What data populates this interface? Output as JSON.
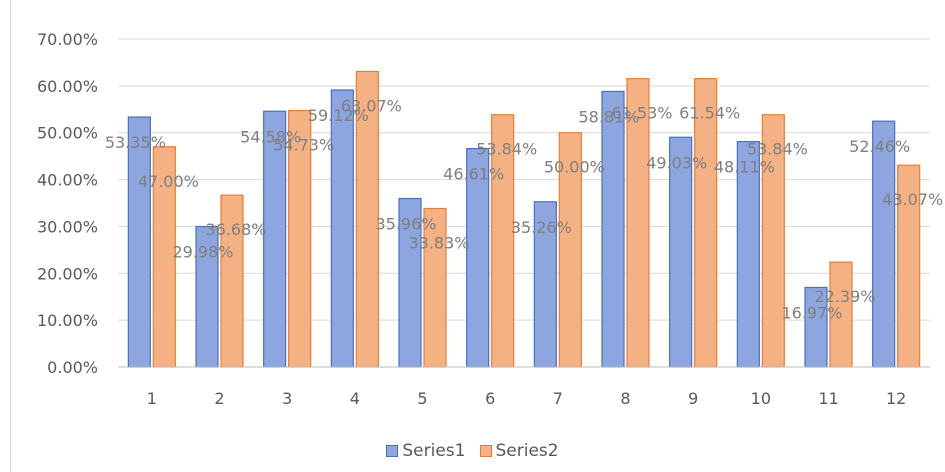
{
  "chart_data": {
    "type": "bar",
    "categories": [
      "1",
      "2",
      "3",
      "4",
      "5",
      "6",
      "7",
      "8",
      "9",
      "10",
      "11",
      "12"
    ],
    "series": [
      {
        "name": "Series1",
        "values": [
          53.35,
          29.98,
          54.58,
          59.12,
          35.96,
          46.61,
          35.26,
          58.81,
          49.03,
          48.11,
          16.97,
          52.46
        ],
        "labels": [
          "53.35%",
          "29.98%",
          "54.58%",
          "59.12%",
          "35.96%",
          "46.61%",
          "35.26%",
          "58.81%",
          "49.03%",
          "48.11%",
          "16.97%",
          "52.46%"
        ],
        "fill": "#8ea6df",
        "stroke": "#4472c4"
      },
      {
        "name": "Series2",
        "values": [
          47.0,
          36.68,
          54.73,
          63.07,
          33.83,
          53.84,
          50.0,
          61.53,
          61.54,
          53.84,
          22.39,
          43.07
        ],
        "labels": [
          "47.00%",
          "36.68%",
          "54.73%",
          "63.07%",
          "33.83%",
          "53.84%",
          "50.00%",
          "61.53%",
          "61.54%",
          "53.84%",
          "22.39%",
          "43.07%"
        ],
        "fill": "#f4b183",
        "stroke": "#ed7d31"
      }
    ],
    "y_ticks": [
      "0.00%",
      "10.00%",
      "20.00%",
      "30.00%",
      "40.00%",
      "50.00%",
      "60.00%",
      "70.00%"
    ],
    "ylim": [
      0,
      70
    ],
    "grid": true,
    "legend_position": "bottom",
    "title": "",
    "xlabel": "",
    "ylabel": ""
  }
}
